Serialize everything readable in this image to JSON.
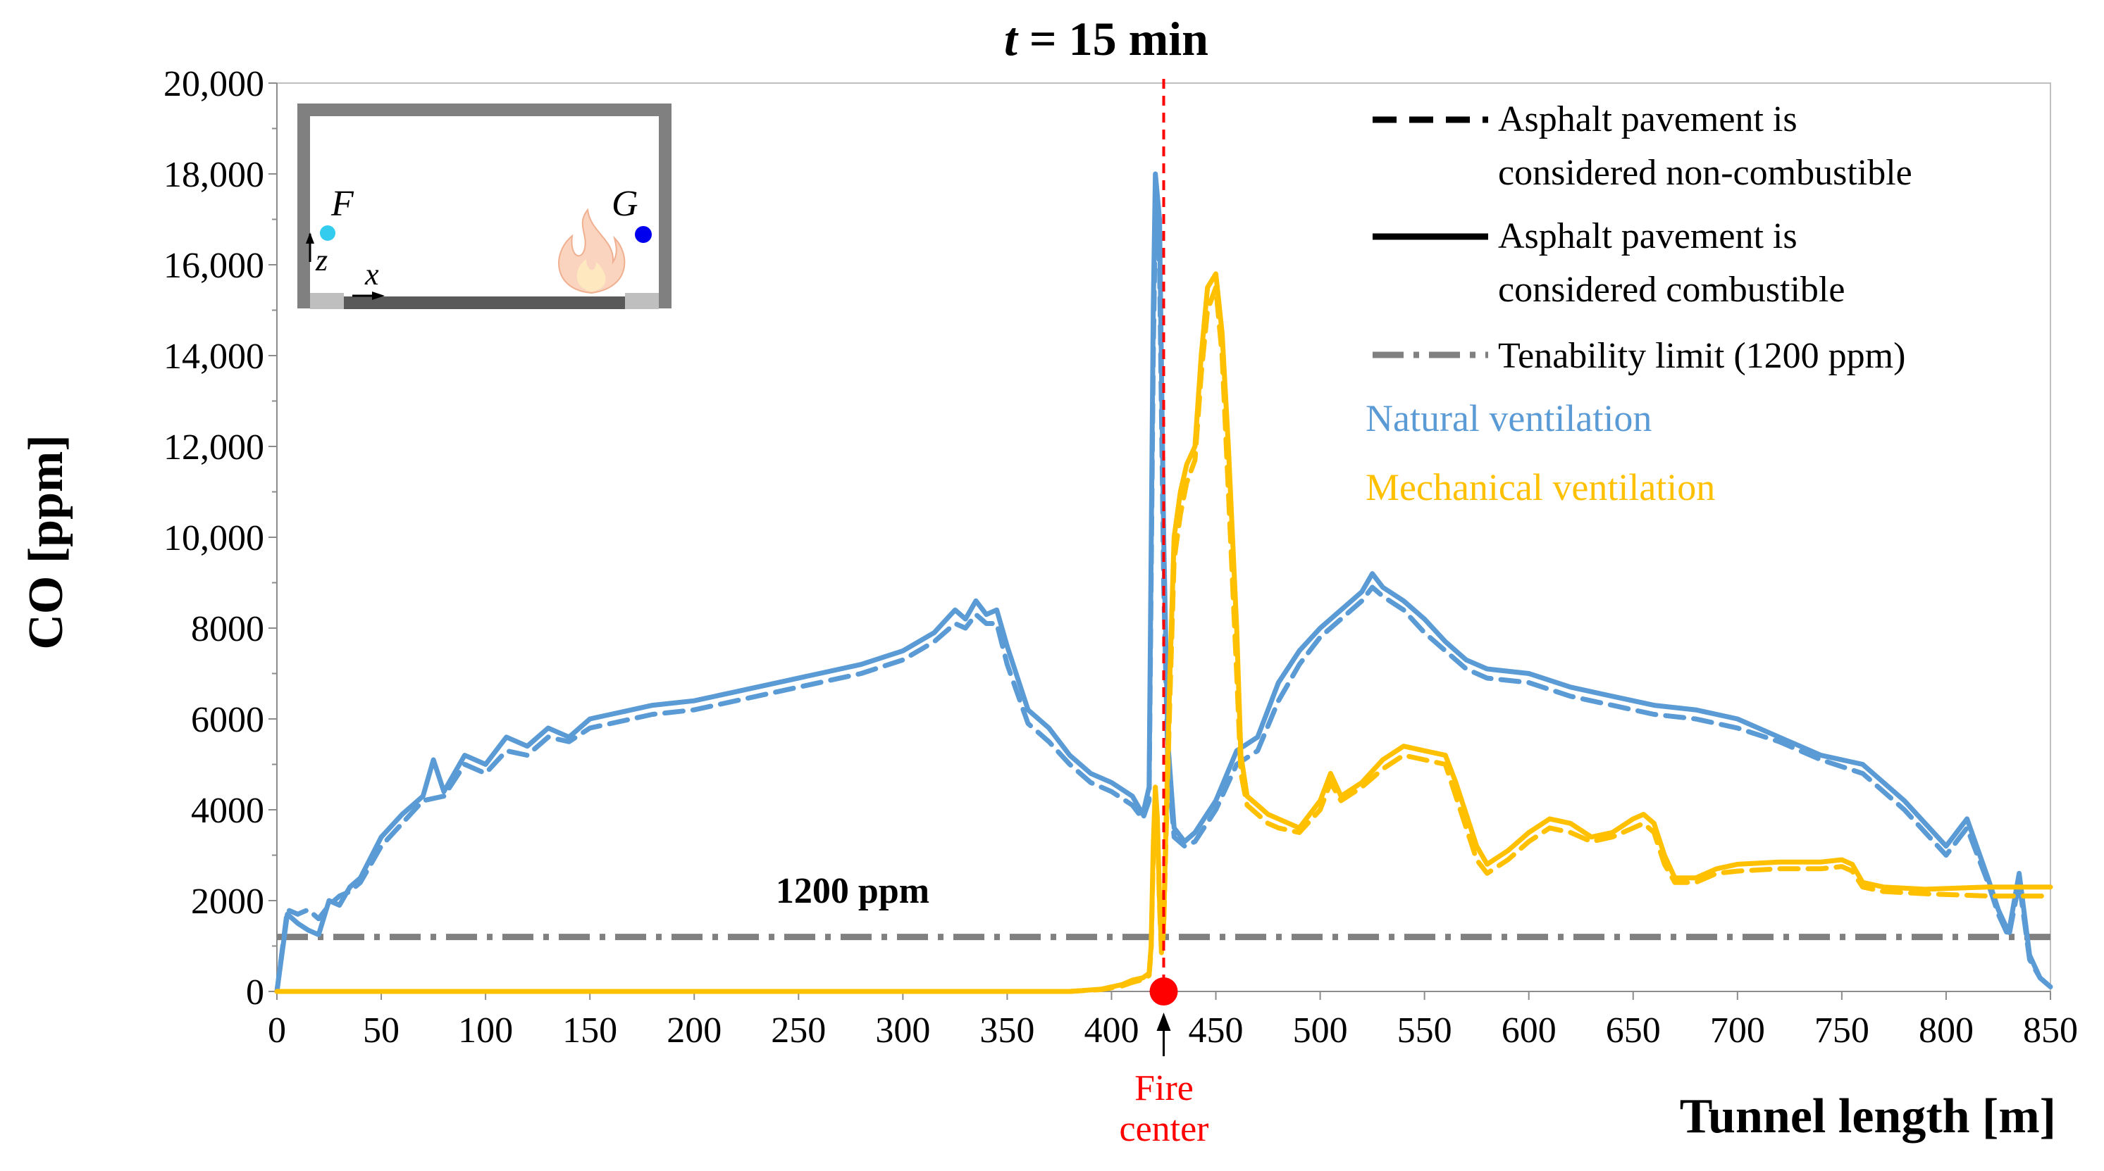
{
  "chart_data": {
    "type": "line",
    "title_italic": "t",
    "title_rest": " = 15 min",
    "xlabel": "Tunnel length [m]",
    "ylabel": "CO [ppm]",
    "xlim": [
      0,
      850
    ],
    "ylim": [
      0,
      20000
    ],
    "x_ticks": [
      0,
      50,
      100,
      150,
      200,
      250,
      300,
      350,
      400,
      450,
      500,
      550,
      600,
      650,
      700,
      750,
      800,
      850
    ],
    "y_ticks": [
      {
        "value": 0,
        "label": "0"
      },
      {
        "value": 2000,
        "label": "2000"
      },
      {
        "value": 4000,
        "label": "4000"
      },
      {
        "value": 6000,
        "label": "6000"
      },
      {
        "value": 8000,
        "label": "8000"
      },
      {
        "value": 10000,
        "label": "10,000"
      },
      {
        "value": 12000,
        "label": "12,000"
      },
      {
        "value": 14000,
        "label": "14,000"
      },
      {
        "value": 16000,
        "label": "16,000"
      },
      {
        "value": 18000,
        "label": "18,000"
      },
      {
        "value": 20000,
        "label": "20,000"
      }
    ],
    "tenability_limit": 1200,
    "tenability_label": "1200 ppm",
    "fire_center_x": 425,
    "fire_center_label": [
      "Fire",
      "center"
    ],
    "legend": {
      "dashed": [
        "Asphalt pavement is",
        "considered non-combustible"
      ],
      "solid": [
        "Asphalt pavement is",
        "considered combustible"
      ],
      "dashdot": "Tenability limit (1200 ppm)",
      "natural": "Natural ventilation",
      "mechanical": "Mechanical ventilation"
    },
    "colors": {
      "natural": "#5b9bd5",
      "mechanical": "#ffc000",
      "limit": "#808080",
      "fire": "#ff0000",
      "inset_probe_F": "#33ccee",
      "inset_probe_G": "#0000ee"
    },
    "inset": {
      "probe_F": "F",
      "probe_G": "G",
      "axis_z": "z",
      "axis_x": "x"
    },
    "series": [
      {
        "name": "Natural ventilation - combustible",
        "color": "natural",
        "style": "solid",
        "x": [
          0,
          5,
          10,
          15,
          20,
          25,
          30,
          35,
          40,
          50,
          60,
          70,
          75,
          80,
          90,
          100,
          110,
          120,
          130,
          140,
          150,
          160,
          170,
          180,
          200,
          220,
          240,
          260,
          280,
          300,
          315,
          325,
          330,
          335,
          340,
          345,
          350,
          360,
          370,
          380,
          390,
          400,
          410,
          415,
          418,
          420,
          421,
          423,
          425,
          427,
          430,
          435,
          440,
          450,
          460,
          470,
          480,
          490,
          500,
          510,
          520,
          525,
          530,
          540,
          550,
          560,
          570,
          580,
          600,
          620,
          640,
          660,
          680,
          700,
          720,
          740,
          760,
          780,
          800,
          810,
          820,
          825,
          830,
          835,
          840,
          845,
          850
        ],
        "y": [
          0,
          1700,
          1500,
          1350,
          1250,
          2000,
          1900,
          2300,
          2500,
          3400,
          3900,
          4300,
          5100,
          4400,
          5200,
          5000,
          5600,
          5400,
          5800,
          5600,
          6000,
          6100,
          6200,
          6300,
          6400,
          6600,
          6800,
          7000,
          7200,
          7500,
          7900,
          8400,
          8200,
          8600,
          8300,
          8400,
          7600,
          6200,
          5800,
          5200,
          4800,
          4600,
          4300,
          3900,
          4500,
          15000,
          18000,
          17000,
          10000,
          5500,
          3600,
          3300,
          3500,
          4200,
          5300,
          5600,
          6800,
          7500,
          8000,
          8400,
          8800,
          9200,
          8900,
          8600,
          8200,
          7700,
          7300,
          7100,
          7000,
          6700,
          6500,
          6300,
          6200,
          6000,
          5600,
          5200,
          5000,
          4200,
          3200,
          3800,
          2500,
          1800,
          1300,
          2600,
          800,
          300,
          100
        ]
      },
      {
        "name": "Natural ventilation - non-combustible",
        "color": "natural",
        "style": "dashed",
        "x": [
          0,
          5,
          10,
          15,
          20,
          25,
          30,
          35,
          40,
          50,
          60,
          70,
          80,
          90,
          100,
          110,
          120,
          130,
          140,
          150,
          160,
          170,
          180,
          200,
          220,
          240,
          260,
          280,
          300,
          315,
          325,
          330,
          335,
          340,
          345,
          350,
          360,
          370,
          380,
          390,
          400,
          410,
          415,
          418,
          420,
          421,
          423,
          425,
          427,
          430,
          435,
          440,
          450,
          460,
          470,
          480,
          490,
          500,
          510,
          520,
          525,
          530,
          540,
          550,
          560,
          570,
          580,
          600,
          620,
          640,
          660,
          680,
          700,
          720,
          740,
          760,
          780,
          800,
          810,
          820,
          825,
          830,
          835,
          840,
          845,
          850
        ],
        "y": [
          0,
          1800,
          1700,
          1800,
          1600,
          1900,
          2100,
          2200,
          2400,
          3200,
          3700,
          4200,
          4300,
          5000,
          4800,
          5300,
          5200,
          5600,
          5500,
          5800,
          5900,
          6000,
          6100,
          6200,
          6400,
          6600,
          6800,
          7000,
          7300,
          7700,
          8100,
          8000,
          8300,
          8100,
          8100,
          7200,
          5900,
          5500,
          5000,
          4600,
          4400,
          4100,
          3800,
          4200,
          14000,
          17000,
          16000,
          9000,
          5000,
          3400,
          3200,
          3300,
          4000,
          5000,
          5300,
          6400,
          7200,
          7800,
          8200,
          8600,
          8900,
          8700,
          8400,
          7900,
          7500,
          7100,
          6900,
          6800,
          6500,
          6300,
          6100,
          6000,
          5800,
          5500,
          5100,
          4800,
          4000,
          3000,
          3600,
          2400,
          1700,
          1200,
          2400,
          700,
          300,
          100
        ]
      },
      {
        "name": "Mechanical ventilation - combustible",
        "color": "mechanical",
        "style": "solid",
        "x": [
          0,
          100,
          200,
          300,
          350,
          380,
          395,
          405,
          410,
          415,
          418,
          419,
          420,
          421,
          422,
          423,
          424,
          425,
          426,
          428,
          430,
          433,
          436,
          440,
          443,
          446,
          450,
          453,
          456,
          460,
          462,
          465,
          470,
          475,
          480,
          490,
          500,
          505,
          510,
          520,
          530,
          540,
          550,
          560,
          565,
          570,
          575,
          580,
          590,
          600,
          610,
          620,
          630,
          640,
          650,
          655,
          660,
          665,
          670,
          680,
          690,
          700,
          720,
          740,
          750,
          755,
          760,
          770,
          790,
          820,
          850
        ],
        "y": [
          0,
          0,
          0,
          0,
          0,
          0,
          50,
          150,
          250,
          300,
          400,
          1000,
          3200,
          4500,
          3800,
          2000,
          900,
          1500,
          3500,
          7000,
          10000,
          11000,
          11600,
          12000,
          14000,
          15500,
          15800,
          14500,
          12000,
          8000,
          5200,
          4300,
          4100,
          3900,
          3800,
          3600,
          4200,
          4800,
          4300,
          4600,
          5100,
          5400,
          5300,
          5200,
          4600,
          3900,
          3200,
          2800,
          3100,
          3500,
          3800,
          3700,
          3400,
          3500,
          3800,
          3900,
          3700,
          3000,
          2500,
          2500,
          2700,
          2800,
          2850,
          2850,
          2900,
          2800,
          2400,
          2300,
          2250,
          2300,
          2300
        ]
      },
      {
        "name": "Mechanical ventilation - non-combustible",
        "color": "mechanical",
        "style": "dashed",
        "x": [
          0,
          100,
          200,
          300,
          350,
          380,
          395,
          405,
          410,
          415,
          418,
          419,
          420,
          421,
          422,
          423,
          424,
          425,
          426,
          428,
          430,
          433,
          436,
          440,
          443,
          446,
          450,
          453,
          456,
          460,
          462,
          465,
          470,
          475,
          480,
          490,
          500,
          505,
          510,
          520,
          530,
          540,
          550,
          560,
          565,
          570,
          575,
          580,
          590,
          600,
          610,
          620,
          630,
          640,
          650,
          655,
          660,
          665,
          670,
          680,
          690,
          700,
          720,
          740,
          750,
          755,
          760,
          770,
          790,
          820,
          850
        ],
        "y": [
          0,
          0,
          0,
          0,
          0,
          0,
          40,
          120,
          200,
          260,
          350,
          900,
          3000,
          4200,
          3600,
          1900,
          800,
          1400,
          3200,
          6500,
          9500,
          10500,
          11200,
          11700,
          13600,
          15000,
          15500,
          14000,
          11000,
          7000,
          4800,
          4100,
          3900,
          3700,
          3600,
          3500,
          4000,
          4600,
          4200,
          4500,
          4900,
          5200,
          5100,
          5000,
          4300,
          3600,
          2900,
          2600,
          2900,
          3300,
          3600,
          3500,
          3300,
          3400,
          3600,
          3700,
          3500,
          2800,
          2400,
          2400,
          2600,
          2650,
          2700,
          2700,
          2750,
          2650,
          2300,
          2200,
          2150,
          2100,
          2100
        ]
      }
    ]
  }
}
